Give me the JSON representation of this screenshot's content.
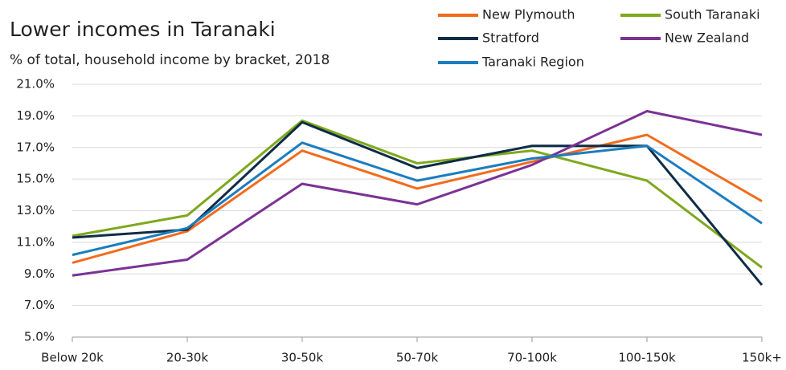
{
  "chart_data": {
    "type": "line",
    "title": "Lower incomes in Taranaki",
    "subtitle": "% of total, household income by bracket, 2018",
    "categories": [
      "Below 20k",
      "20-30k",
      "30-50k",
      "50-70k",
      "70-100k",
      "100-150k",
      "150k+"
    ],
    "series": [
      {
        "name": "New Plymouth",
        "color": "#f26b1d",
        "values": [
          9.7,
          11.7,
          16.8,
          14.4,
          16.1,
          17.8,
          13.6
        ]
      },
      {
        "name": "South Taranaki",
        "color": "#7fa81d",
        "values": [
          11.4,
          12.7,
          18.7,
          16.0,
          16.8,
          14.9,
          9.4
        ]
      },
      {
        "name": "Stratford",
        "color": "#0e2c46",
        "values": [
          11.3,
          11.8,
          18.6,
          15.7,
          17.1,
          17.1,
          8.3
        ]
      },
      {
        "name": "New Zealand",
        "color": "#7b3294",
        "values": [
          8.9,
          9.9,
          14.7,
          13.4,
          15.9,
          19.3,
          17.8
        ]
      },
      {
        "name": "Taranaki Region",
        "color": "#1a7dbf",
        "values": [
          10.2,
          11.9,
          17.3,
          14.9,
          16.3,
          17.1,
          12.2
        ]
      }
    ],
    "ylim": [
      5,
      21
    ],
    "yticks": [
      {
        "value": 5,
        "label": "5.0%"
      },
      {
        "value": 7,
        "label": "7.0%"
      },
      {
        "value": 9,
        "label": "9.0%"
      },
      {
        "value": 11,
        "label": "11.0%"
      },
      {
        "value": 13,
        "label": "13.0%"
      },
      {
        "value": 15,
        "label": "15.0%"
      },
      {
        "value": 17,
        "label": "17.0%"
      },
      {
        "value": 19,
        "label": "19.0%"
      },
      {
        "value": 21,
        "label": "21.0%"
      }
    ],
    "grid": true,
    "legend": "top-right"
  }
}
